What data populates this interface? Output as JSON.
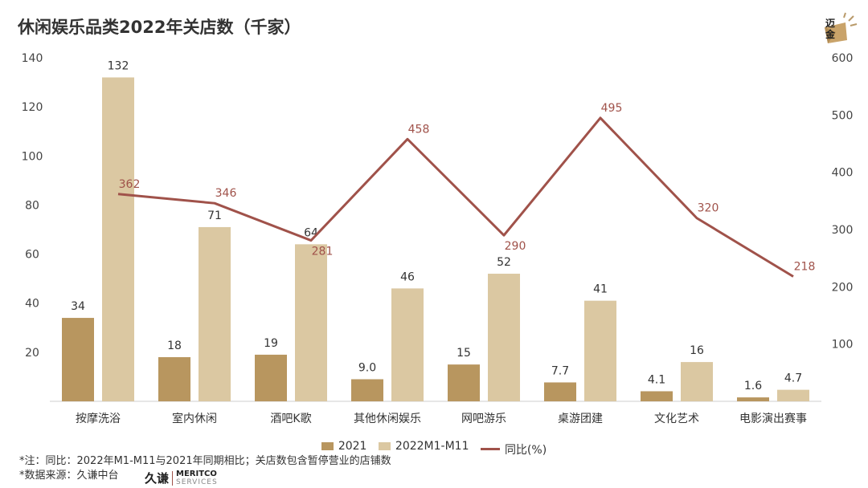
{
  "title": "休闲娱乐品类2022年关店数（千家）",
  "logo_corner": {
    "line1": "迈",
    "line2": "金",
    "colors": {
      "box": "#c9a36a",
      "rays": "#b99a6a"
    }
  },
  "chart_data": {
    "type": "bar",
    "categories": [
      "按摩洗浴",
      "室内休闲",
      "酒吧K歌",
      "其他休闲娱乐",
      "网吧游乐",
      "桌游团建",
      "文化艺术",
      "电影演出赛事"
    ],
    "series": [
      {
        "name": "2021",
        "type": "bar",
        "axis": "left",
        "color": "#b8965f",
        "values": [
          34,
          18,
          19,
          9.0,
          15,
          7.7,
          4.1,
          1.6
        ],
        "labels": [
          "34",
          "18",
          "19",
          "9.0",
          "15",
          "7.7",
          "4.1",
          "1.6"
        ]
      },
      {
        "name": "2022M1-M11",
        "type": "bar",
        "axis": "left",
        "color": "#dbc8a2",
        "values": [
          132,
          71,
          64,
          46,
          52,
          41,
          16,
          4.7
        ],
        "labels": [
          "132",
          "71",
          "64",
          "46",
          "52",
          "41",
          "16",
          "4.7"
        ]
      },
      {
        "name": "同比(%)",
        "type": "line",
        "axis": "right",
        "color": "#a0524a",
        "values": [
          362,
          346,
          281,
          458,
          290,
          495,
          320,
          218
        ],
        "labels": [
          "362",
          "346",
          "281",
          "458",
          "290",
          "495",
          "320",
          "218"
        ]
      }
    ],
    "y_left": {
      "min": 0,
      "max": 140,
      "ticks": [
        20,
        40,
        60,
        80,
        100,
        120,
        140
      ]
    },
    "y_right": {
      "min": 0,
      "max": 600,
      "ticks": [
        100,
        200,
        300,
        400,
        500,
        600
      ]
    },
    "grid": false,
    "legend_position": "bottom"
  },
  "notes": {
    "line1": "*注：同比：2022年M1-M11与2021年同期相比；关店数包含暂停营业的店铺数",
    "line2": "*数据来源：久谦中台"
  },
  "brand": {
    "cn": "久谦",
    "en1": "MERITCO",
    "en2": "SERVICES"
  }
}
